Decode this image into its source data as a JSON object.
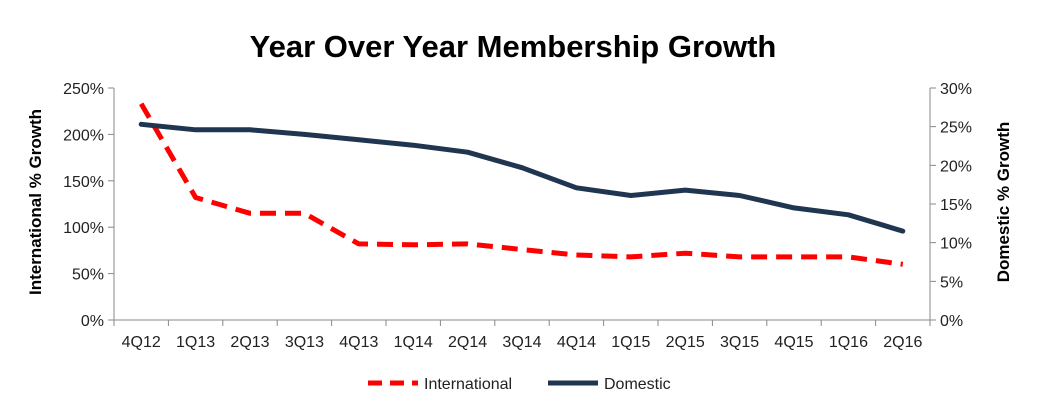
{
  "chart_data": {
    "type": "line",
    "title": "Year Over Year Membership Growth",
    "categories": [
      "4Q12",
      "1Q13",
      "2Q13",
      "3Q13",
      "4Q13",
      "1Q14",
      "2Q14",
      "3Q14",
      "4Q14",
      "1Q15",
      "2Q15",
      "3Q15",
      "4Q15",
      "1Q16",
      "2Q16"
    ],
    "y_left": {
      "label": "International % Growth",
      "range": [
        0,
        250
      ],
      "ticks": [
        "0%",
        "50%",
        "100%",
        "150%",
        "200%",
        "250%"
      ]
    },
    "y_right": {
      "label": "Domestic % Growth",
      "range": [
        0,
        30
      ],
      "ticks": [
        "0%",
        "5%",
        "10%",
        "15%",
        "20%",
        "25%",
        "30%"
      ]
    },
    "series": [
      {
        "name": "International",
        "axis": "left",
        "style": "dashed",
        "color": "#ff0000",
        "values": [
          233,
          132,
          115,
          115,
          82,
          81,
          82,
          76,
          70,
          68,
          72,
          68,
          68,
          68,
          60
        ]
      },
      {
        "name": "Domestic",
        "axis": "right",
        "style": "solid",
        "color": "#1f3550",
        "values": [
          25.3,
          24.6,
          24.6,
          24.0,
          23.3,
          22.6,
          21.7,
          19.7,
          17.1,
          16.1,
          16.8,
          16.1,
          14.5,
          13.6,
          11.5
        ]
      }
    ],
    "grid": false,
    "legend_position": "bottom"
  }
}
